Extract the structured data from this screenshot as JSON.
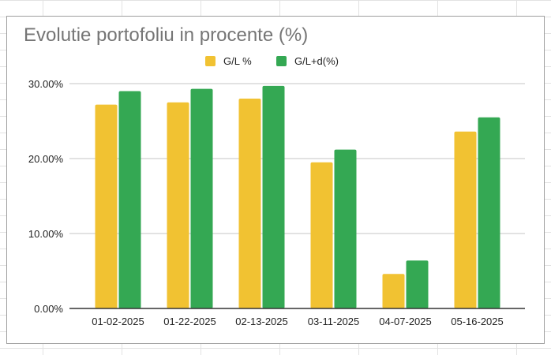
{
  "chart_data": {
    "type": "bar",
    "title": "Evolutie portofoliu in procente (%)",
    "categories": [
      "01-02-2025",
      "01-22-2025",
      "02-13-2025",
      "03-11-2025",
      "04-07-2025",
      "05-16-2025"
    ],
    "series": [
      {
        "name": "G/L %",
        "color": "#f1c232",
        "values": [
          27.2,
          27.5,
          28.0,
          19.5,
          4.6,
          23.6
        ]
      },
      {
        "name": "G/L+d(%)",
        "color": "#34a853",
        "values": [
          29.0,
          29.3,
          29.7,
          21.2,
          6.4,
          25.5
        ]
      }
    ],
    "yticks": [
      "0.00%",
      "10.00%",
      "20.00%",
      "30.00%"
    ],
    "ytick_values": [
      0,
      10,
      20,
      30
    ],
    "ylim": [
      0,
      30
    ],
    "xlabel": "",
    "ylabel": "",
    "legend": "top-center",
    "grid": true
  }
}
